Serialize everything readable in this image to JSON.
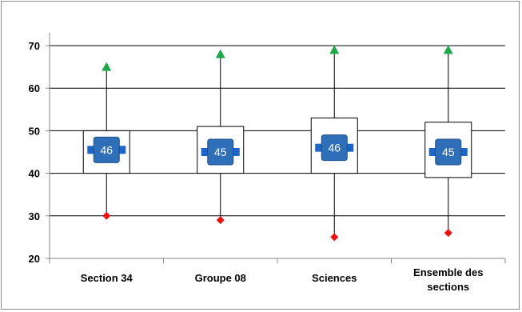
{
  "chart_data": {
    "type": "box",
    "title": "",
    "xlabel": "",
    "ylabel": "",
    "ylim": [
      20,
      75
    ],
    "yticks": [
      20,
      30,
      40,
      50,
      60,
      70
    ],
    "grid": true,
    "categories": [
      [
        "Section 34"
      ],
      [
        "Groupe 08"
      ],
      [
        "Sciences"
      ],
      [
        "Ensemble des",
        "sections"
      ]
    ],
    "series": [
      {
        "min": 30,
        "q1": 40,
        "median": 45.5,
        "q3": 50,
        "max": 65,
        "median_label": "46"
      },
      {
        "min": 29,
        "q1": 40,
        "median": 45,
        "q3": 51,
        "max": 68,
        "median_label": "45"
      },
      {
        "min": 25,
        "q1": 40,
        "median": 46,
        "q3": 53,
        "max": 69,
        "median_label": "46"
      },
      {
        "min": 26,
        "q1": 39,
        "median": 45,
        "q3": 52,
        "max": 69,
        "median_label": "45"
      }
    ],
    "colors": {
      "max_marker": "#1fa84a",
      "min_marker": "#ee1111",
      "median_box": "#2f6fb8",
      "median_tab": "#1f64c7",
      "grid": "#000000"
    }
  }
}
